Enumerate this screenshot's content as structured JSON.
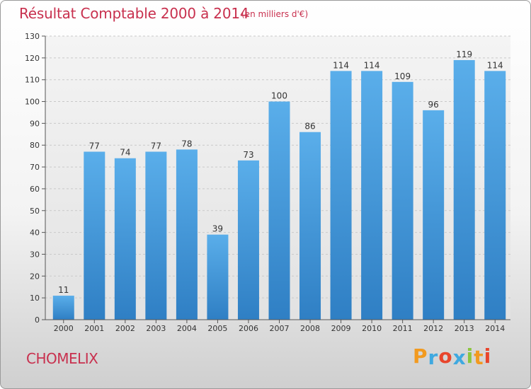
{
  "page": {
    "title": "Résultat Comptable 2000 à 2014",
    "subtitle": "(en milliers d'€)",
    "commune": "CHOMELIX",
    "logo": {
      "letters": [
        "P",
        "r",
        "o",
        "x",
        "i",
        "t",
        "i"
      ],
      "colors": [
        "#f29a1f",
        "#3fa9e0",
        "#e8452c",
        "#3fa9e0",
        "#8cc63f",
        "#f29a1f",
        "#e8452c"
      ]
    }
  },
  "chart_data": {
    "type": "bar",
    "title": "Résultat Comptable 2000 à 2014",
    "subtitle": "(en milliers d'€)",
    "categories": [
      "2000",
      "2001",
      "2002",
      "2003",
      "2004",
      "2005",
      "2006",
      "2007",
      "2008",
      "2009",
      "2010",
      "2011",
      "2012",
      "2013",
      "2014"
    ],
    "values": [
      11,
      77,
      74,
      77,
      78,
      39,
      73,
      100,
      86,
      114,
      114,
      109,
      96,
      119,
      114
    ],
    "data_labels": [
      "11",
      "77",
      "74",
      "77",
      "78",
      "39",
      "73",
      "100",
      "86",
      "114",
      "114",
      "109",
      "96",
      "119",
      "114"
    ],
    "ylim": [
      0,
      130
    ],
    "yticks": [
      0,
      10,
      20,
      30,
      40,
      50,
      60,
      70,
      80,
      90,
      100,
      110,
      120,
      130
    ],
    "grid": true,
    "bar_color": "#3d8fd2",
    "bar_highlight": "#5aaeea"
  }
}
